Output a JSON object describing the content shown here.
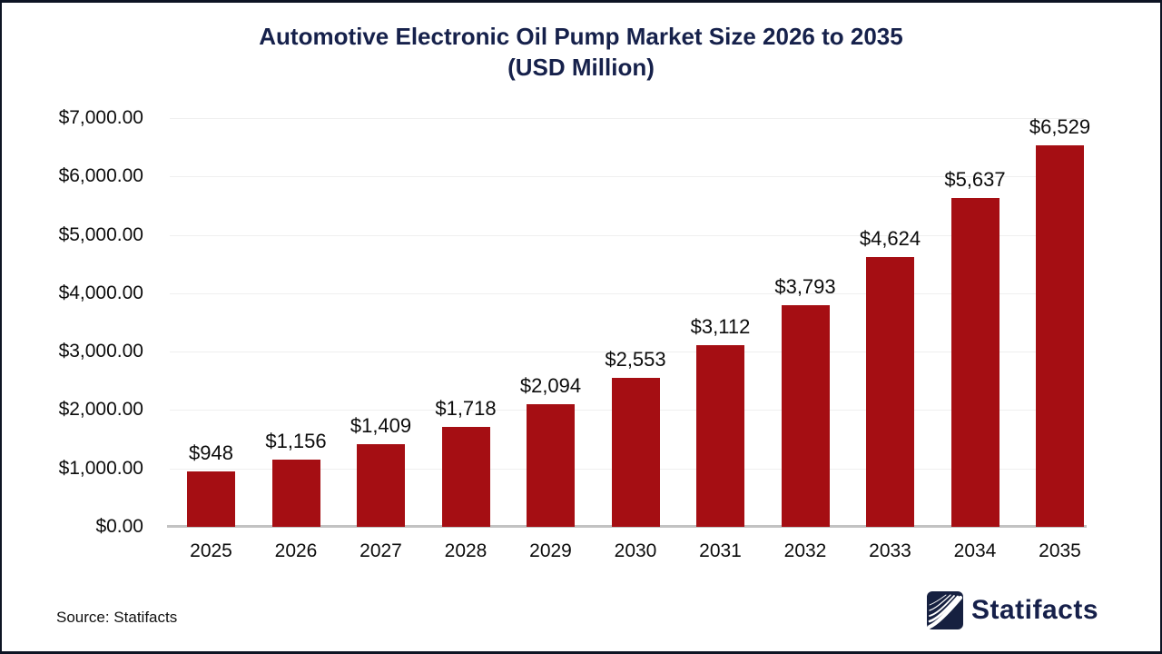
{
  "title": {
    "line1": "Automotive Electronic Oil Pump Market Size 2026 to 2035",
    "line2": "(USD Million)"
  },
  "footer": {
    "source_label": "Source: Statifacts",
    "brand_name": "Statifacts"
  },
  "colors": {
    "bar": "#a50e13",
    "title_navy": "#16214b",
    "logo_navy": "#162040",
    "gridline": "#efefef",
    "baseline": "#c2c2c2",
    "frame_border": "#0d1424"
  },
  "chart_data": {
    "type": "bar",
    "title": "Automotive Electronic Oil Pump Market Size 2026 to 2035 (USD Million)",
    "xlabel": "",
    "ylabel": "",
    "ylim": [
      0,
      7000
    ],
    "grid": true,
    "legend": "none",
    "categories": [
      "2025",
      "2026",
      "2027",
      "2028",
      "2029",
      "2030",
      "2031",
      "2032",
      "2033",
      "2034",
      "2035"
    ],
    "values": [
      948,
      1156,
      1409,
      1718,
      2094,
      2553,
      3112,
      3793,
      4624,
      5637,
      6529
    ],
    "value_labels": [
      "$948",
      "$1,156",
      "$1,409",
      "$1,718",
      "$2,094",
      "$2,553",
      "$3,112",
      "$3,793",
      "$4,624",
      "$5,637",
      "$6,529"
    ],
    "y_ticks": [
      {
        "value": 7000,
        "label": "$7,000.00"
      },
      {
        "value": 6000,
        "label": "$6,000.00"
      },
      {
        "value": 5000,
        "label": "$5,000.00"
      },
      {
        "value": 4000,
        "label": "$4,000.00"
      },
      {
        "value": 3000,
        "label": "$3,000.00"
      },
      {
        "value": 2000,
        "label": "$2,000.00"
      },
      {
        "value": 1000,
        "label": "$1,000.00"
      },
      {
        "value": 0,
        "label": "$0.00"
      }
    ]
  }
}
